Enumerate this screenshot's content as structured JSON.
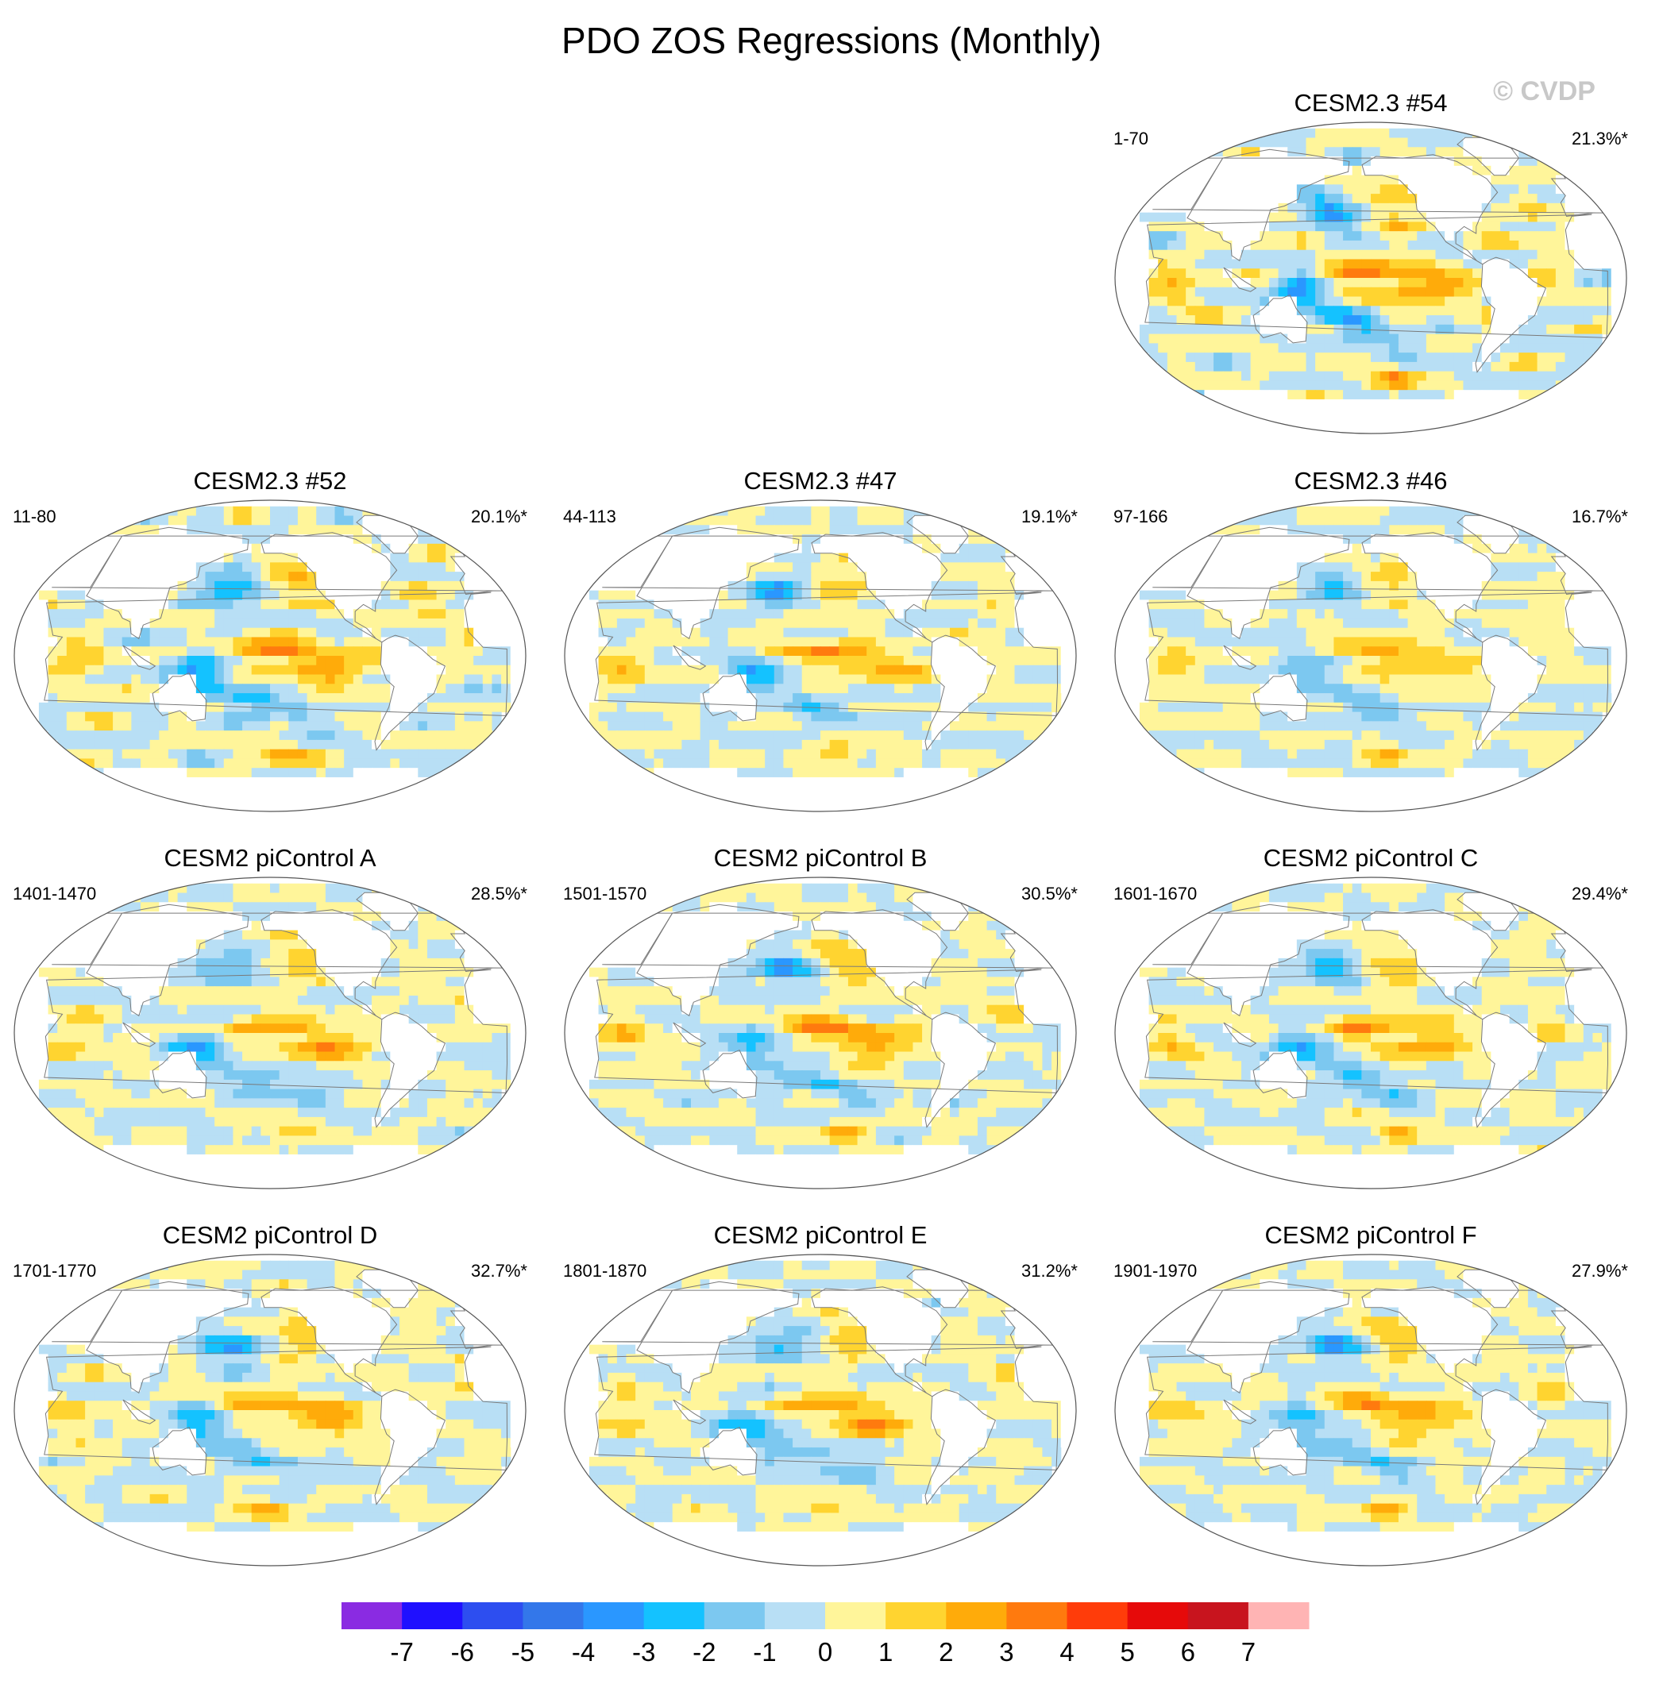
{
  "title": "PDO ZOS Regressions (Monthly)",
  "credit": "© CVDP",
  "colors": {
    "land": "#ffffff",
    "coast": "#7a7a7a",
    "palette": [
      "#8a2be2",
      "#1f10ff",
      "#2d4ef0",
      "#3377ea",
      "#2a97ff",
      "#14c2ff",
      "#7cc8f0",
      "#b8dff5",
      "#fff59a",
      "#ffd430",
      "#ffab0a",
      "#ff7a0e",
      "#ff3c0a",
      "#e60a0a",
      "#c8141e",
      "#ffb4b4"
    ]
  },
  "chart_data": {
    "type": "map-panels",
    "variable": "ZOS",
    "colorbar": {
      "labels": [
        "-7",
        "-6",
        "-5",
        "-4",
        "-3",
        "-2",
        "-1",
        "0",
        "1",
        "2",
        "3",
        "4",
        "5",
        "6",
        "7"
      ],
      "levels": [
        -7,
        -6,
        -5,
        -4,
        -3,
        -2,
        -1,
        0,
        1,
        2,
        3,
        4,
        5,
        6,
        7
      ]
    },
    "panels": [
      {
        "title": "CESM2.3 #54",
        "range": "1-70",
        "pct": "21.3%*",
        "row": 0,
        "col": 2,
        "seed": 54,
        "amp": 1.25
      },
      {
        "title": "CESM2.3 #52",
        "range": "11-80",
        "pct": "20.1%*",
        "row": 1,
        "col": 0,
        "seed": 52,
        "amp": 1.2
      },
      {
        "title": "CESM2.3 #47",
        "range": "44-113",
        "pct": "19.1%*",
        "row": 1,
        "col": 1,
        "seed": 47,
        "amp": 0.95
      },
      {
        "title": "CESM2.3 #46",
        "range": "97-166",
        "pct": "16.7%*",
        "row": 1,
        "col": 2,
        "seed": 46,
        "amp": 0.8
      },
      {
        "title": "CESM2 piControl A",
        "range": "1401-1470",
        "pct": "28.5%*",
        "row": 2,
        "col": 0,
        "seed": 11,
        "amp": 1.0
      },
      {
        "title": "CESM2 piControl B",
        "range": "1501-1570",
        "pct": "30.5%*",
        "row": 2,
        "col": 1,
        "seed": 12,
        "amp": 1.05
      },
      {
        "title": "CESM2 piControl C",
        "range": "1601-1670",
        "pct": "29.4%*",
        "row": 2,
        "col": 2,
        "seed": 13,
        "amp": 1.0
      },
      {
        "title": "CESM2 piControl D",
        "range": "1701-1770",
        "pct": "32.7%*",
        "row": 3,
        "col": 0,
        "seed": 14,
        "amp": 1.05
      },
      {
        "title": "CESM2 piControl E",
        "range": "1801-1870",
        "pct": "31.2%*",
        "row": 3,
        "col": 1,
        "seed": 15,
        "amp": 1.0
      },
      {
        "title": "CESM2 piControl F",
        "range": "1901-1970",
        "pct": "27.9%*",
        "row": 3,
        "col": 2,
        "seed": 16,
        "amp": 1.0
      }
    ]
  }
}
